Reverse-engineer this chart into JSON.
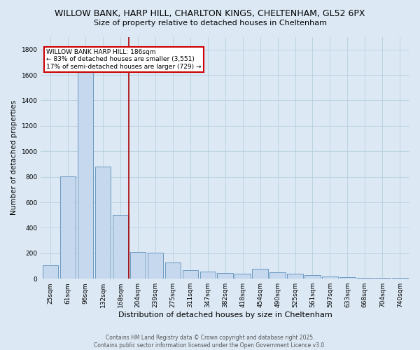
{
  "title_line1": "WILLOW BANK, HARP HILL, CHARLTON KINGS, CHELTENHAM, GL52 6PX",
  "title_line2": "Size of property relative to detached houses in Cheltenham",
  "xlabel": "Distribution of detached houses by size in Cheltenham",
  "ylabel": "Number of detached properties",
  "categories": [
    "25sqm",
    "61sqm",
    "96sqm",
    "132sqm",
    "168sqm",
    "204sqm",
    "239sqm",
    "275sqm",
    "311sqm",
    "347sqm",
    "382sqm",
    "418sqm",
    "454sqm",
    "490sqm",
    "525sqm",
    "561sqm",
    "597sqm",
    "633sqm",
    "668sqm",
    "704sqm",
    "740sqm"
  ],
  "values": [
    105,
    805,
    1680,
    880,
    500,
    210,
    205,
    130,
    65,
    55,
    45,
    40,
    80,
    50,
    38,
    28,
    18,
    12,
    7,
    4,
    4
  ],
  "bar_color": "#c5d8ee",
  "bar_edge_color": "#5b8db8",
  "vline_pos": 4.5,
  "vline_color": "#aa0000",
  "annotation_text": "WILLOW BANK HARP HILL: 186sqm\n← 83% of detached houses are smaller (3,551)\n17% of semi-detached houses are larger (729) →",
  "annotation_box_facecolor": "white",
  "annotation_box_edgecolor": "#cc0000",
  "background_color": "#dce9f5",
  "plot_bg_color": "#dce9f5",
  "grid_color": "#b8cfe0",
  "ylim": [
    0,
    1900
  ],
  "yticks": [
    0,
    200,
    400,
    600,
    800,
    1000,
    1200,
    1400,
    1600,
    1800
  ],
  "footer_line1": "Contains HM Land Registry data © Crown copyright and database right 2025.",
  "footer_line2": "Contains public sector information licensed under the Open Government Licence v3.0.",
  "title_fontsize": 9,
  "subtitle_fontsize": 8,
  "ylabel_fontsize": 7.5,
  "xlabel_fontsize": 8,
  "tick_fontsize": 6.5,
  "annotation_fontsize": 6.5,
  "footer_fontsize": 5.5
}
